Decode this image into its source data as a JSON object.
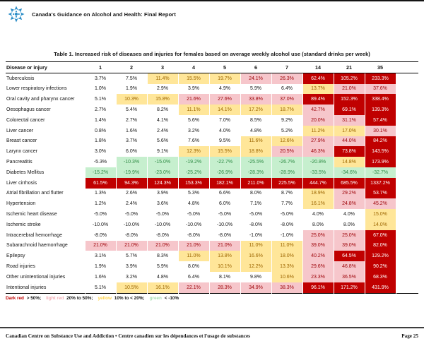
{
  "page": {
    "header": {
      "title": "Canada's Guidance on Alcohol and Health: Final Report"
    },
    "footer": {
      "left": "Canadian Centre on Substance Use and Addiction  •  Centre canadien sur les dépendances et l'usage de substances",
      "right": "Page 25"
    }
  },
  "colors": {
    "logo_blue": "#2B8DC7",
    "dark_red_bg": "#C00000",
    "dark_red_text": "#FFFFFF",
    "light_red_bg": "#F6C6CB",
    "light_red_text": "#9C0006",
    "yellow_bg": "#FFE699",
    "yellow_text": "#9C6500",
    "green_bg": "#C6EFCE",
    "green_text": "#2E8B44"
  },
  "thresholds": {
    "dark_red_over": 50,
    "light_red_min": 20,
    "yellow_min": 10,
    "green_below": -10
  },
  "table": {
    "title": "Table 1. Increased risk of diseases and injuries for females based on average weekly alcohol use (standard drinks per week)",
    "first_column_header": "Disease or injury",
    "drink_columns": [
      "1",
      "2",
      "3",
      "4",
      "5",
      "6",
      "7",
      "14",
      "21",
      "35"
    ],
    "rows": [
      {
        "disease": "Tuberculosis",
        "values": [
          3.7,
          7.5,
          11.4,
          15.5,
          19.7,
          24.1,
          26.3,
          62.4,
          105.2,
          233.3
        ]
      },
      {
        "disease": "Lower respiratory infections",
        "values": [
          1.0,
          1.9,
          2.9,
          3.9,
          4.9,
          5.9,
          6.4,
          13.7,
          21.0,
          37.6
        ]
      },
      {
        "disease": "Oral cavity and pharynx cancer",
        "values": [
          5.1,
          10.3,
          15.8,
          21.6,
          27.6,
          33.8,
          37.0,
          89.4,
          152.3,
          338.4
        ]
      },
      {
        "disease": "Oesophagus cancer",
        "values": [
          2.7,
          5.4,
          8.2,
          11.1,
          14.1,
          17.2,
          18.7,
          42.7,
          69.1,
          139.3
        ]
      },
      {
        "disease": "Colorectal cancer",
        "values": [
          1.4,
          2.7,
          4.1,
          5.6,
          7.0,
          8.5,
          9.2,
          20.0,
          31.1,
          57.4
        ]
      },
      {
        "disease": "Liver cancer",
        "values": [
          0.8,
          1.6,
          2.4,
          3.2,
          4.0,
          4.8,
          5.2,
          11.2,
          17.0,
          30.1
        ]
      },
      {
        "disease": "Breast cancer",
        "values": [
          1.8,
          3.7,
          5.6,
          7.6,
          9.5,
          11.6,
          12.6,
          27.9,
          44.0,
          84.2
        ]
      },
      {
        "disease": "Larynx cancer",
        "values": [
          3.0,
          6.0,
          9.1,
          12.3,
          15.5,
          18.8,
          20.5,
          46.3,
          73.8,
          143.5
        ]
      },
      {
        "disease": "Pancreatitis",
        "values": [
          -5.3,
          -10.3,
          -15.0,
          -19.2,
          -22.7,
          -25.5,
          -26.7,
          -20.8,
          14.8,
          173.9
        ]
      },
      {
        "disease": "Diabetes Mellitus",
        "values": [
          -15.2,
          -19.9,
          -23.0,
          -25.2,
          -26.9,
          -28.3,
          -28.9,
          -33.5,
          -34.6,
          -32.7
        ]
      },
      {
        "disease": "Liver cirrhosis",
        "values": [
          61.5,
          94.3,
          124.3,
          153.3,
          182.1,
          211.0,
          225.5,
          444.7,
          685.5,
          1337.2
        ]
      },
      {
        "disease": "Atrial fibrillation and flutter",
        "values": [
          1.3,
          2.6,
          3.9,
          5.3,
          6.6,
          8.0,
          8.7,
          18.9,
          29.2,
          53.7
        ]
      },
      {
        "disease": "Hypertension",
        "values": [
          1.2,
          2.4,
          3.6,
          4.8,
          6.0,
          7.1,
          7.7,
          16.1,
          24.8,
          45.2
        ]
      },
      {
        "disease": "Ischemic heart disease",
        "values": [
          -5.0,
          -5.0,
          -5.0,
          -5.0,
          -5.0,
          -5.0,
          -5.0,
          4.0,
          4.0,
          15.0
        ]
      },
      {
        "disease": "Ischemic stroke",
        "values": [
          -10.0,
          -10.0,
          -10.0,
          -10.0,
          -10.0,
          -8.0,
          -8.0,
          8.0,
          8.0,
          14.0
        ]
      },
      {
        "disease": "Intracerebral hemorrhage",
        "values": [
          -8.0,
          -8.0,
          -8.0,
          -8.0,
          -8.0,
          -1.0,
          -1.0,
          25.0,
          25.0,
          67.0
        ]
      },
      {
        "disease": "Subarachnoid haemorrhage",
        "values": [
          21.0,
          21.0,
          21.0,
          21.0,
          21.0,
          11.0,
          11.0,
          39.0,
          39.0,
          82.0
        ]
      },
      {
        "disease": "Epilepsy",
        "values": [
          3.1,
          5.7,
          8.3,
          11.0,
          13.8,
          16.6,
          18.0,
          40.2,
          64.5,
          129.2
        ]
      },
      {
        "disease": "Road injuries",
        "values": [
          1.9,
          3.9,
          5.9,
          8.0,
          10.1,
          12.2,
          13.3,
          29.6,
          46.8,
          90.2
        ]
      },
      {
        "disease": "Other unintentional injuries",
        "values": [
          1.6,
          3.2,
          4.8,
          6.4,
          8.1,
          9.8,
          10.6,
          23.3,
          36.5,
          68.3
        ]
      },
      {
        "disease": "Intentional injuries",
        "values": [
          5.1,
          10.5,
          16.1,
          22.1,
          28.3,
          34.9,
          38.3,
          96.1,
          171.2,
          431.9
        ]
      }
    ]
  },
  "legend": {
    "segments": [
      {
        "word": "Dark red",
        "word_color": "#C00000",
        "range": "> 50%;"
      },
      {
        "word": "light red",
        "word_color": "#F3AEB6",
        "range": "20% to 50%;"
      },
      {
        "word": "yellow",
        "word_color": "#FFD34D",
        "range": "10% to < 20%;"
      },
      {
        "word": "green",
        "word_color": "#A8DFB2",
        "range": "< -10%"
      }
    ]
  }
}
